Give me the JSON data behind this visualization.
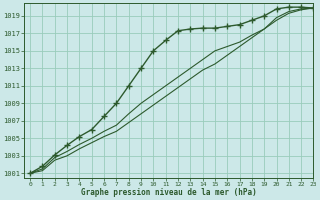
{
  "title": "Graphe pression niveau de la mer (hPa)",
  "bg_color": "#cce8e8",
  "grid_color": "#99ccbb",
  "line_color": "#2d5a2d",
  "marker": "+",
  "marker_size": 4,
  "xlim": [
    -0.5,
    23
  ],
  "ylim": [
    1000.5,
    1020.5
  ],
  "yticks": [
    1001,
    1003,
    1005,
    1007,
    1009,
    1011,
    1013,
    1015,
    1017,
    1019
  ],
  "xticks": [
    0,
    1,
    2,
    3,
    4,
    5,
    6,
    7,
    8,
    9,
    10,
    11,
    12,
    13,
    14,
    15,
    16,
    17,
    18,
    19,
    20,
    21,
    22,
    23
  ],
  "series": [
    {
      "y": [
        1001.0,
        1001.8,
        1003.1,
        1004.2,
        1005.2,
        1006.0,
        1007.5,
        1009.0,
        1011.0,
        1013.0,
        1015.0,
        1016.2,
        1017.3,
        1017.5,
        1017.6,
        1017.6,
        1017.8,
        1018.0,
        1018.5,
        1019.0,
        1019.8,
        1020.0,
        1020.0,
        1019.9
      ],
      "marker": true,
      "lw": 1.0
    },
    {
      "y": [
        1001.0,
        1001.5,
        1002.8,
        1003.5,
        1004.3,
        1005.0,
        1005.8,
        1006.5,
        1007.8,
        1009.0,
        1010.0,
        1011.0,
        1012.0,
        1013.0,
        1014.0,
        1015.0,
        1015.5,
        1016.0,
        1016.8,
        1017.5,
        1018.5,
        1019.3,
        1019.7,
        1019.9
      ],
      "marker": false,
      "lw": 0.8
    },
    {
      "y": [
        1001.0,
        1001.3,
        1002.5,
        1003.0,
        1003.8,
        1004.5,
        1005.2,
        1005.8,
        1006.8,
        1007.8,
        1008.8,
        1009.8,
        1010.8,
        1011.8,
        1012.8,
        1013.5,
        1014.5,
        1015.5,
        1016.5,
        1017.5,
        1018.8,
        1019.5,
        1019.8,
        1019.9
      ],
      "marker": false,
      "lw": 0.8
    }
  ]
}
